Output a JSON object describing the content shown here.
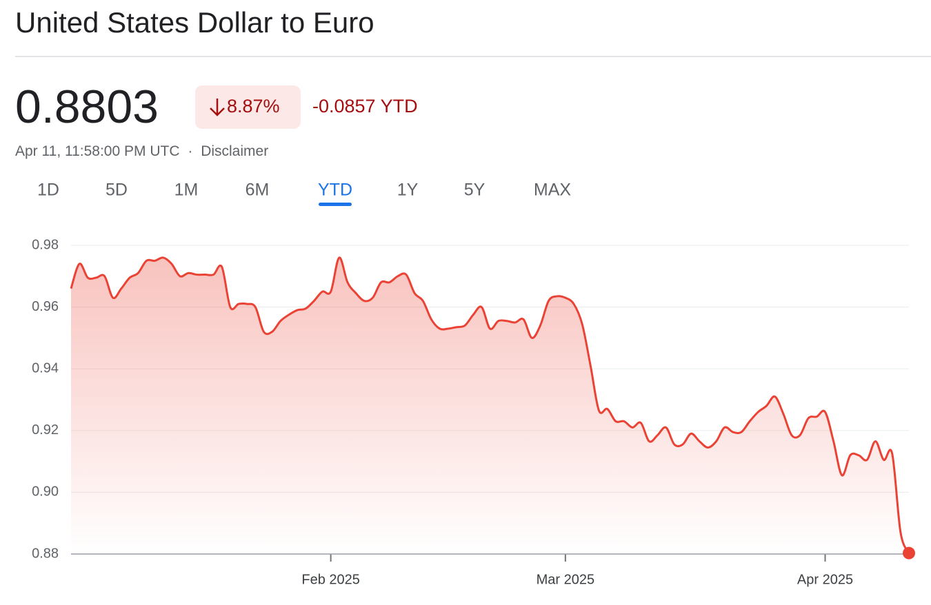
{
  "header": {
    "title": "United States Dollar to Euro",
    "price": "0.8803",
    "change_percent": "8.87%",
    "change_value": "-0.0857 YTD",
    "timestamp": "Apr 11, 11:58:00 PM UTC",
    "separator": "·",
    "disclaimer": "Disclaimer"
  },
  "tabs": {
    "items": [
      "1D",
      "5D",
      "1M",
      "6M",
      "YTD",
      "1Y",
      "5Y",
      "MAX"
    ],
    "selected": 4
  },
  "chart_data": {
    "type": "line",
    "color": "#ea4335",
    "grid": true,
    "values": [
      0.966,
      0.974,
      0.9695,
      0.9695,
      0.97,
      0.963,
      0.966,
      0.9695,
      0.971,
      0.975,
      0.975,
      0.976,
      0.974,
      0.97,
      0.971,
      0.9705,
      0.9705,
      0.9705,
      0.973,
      0.96,
      0.961,
      0.961,
      0.96,
      0.952,
      0.952,
      0.9555,
      0.9575,
      0.959,
      0.9595,
      0.962,
      0.965,
      0.965,
      0.976,
      0.968,
      0.9645,
      0.962,
      0.963,
      0.968,
      0.968,
      0.97,
      0.9705,
      0.9645,
      0.962,
      0.956,
      0.953,
      0.953,
      0.9535,
      0.954,
      0.9575,
      0.96,
      0.953,
      0.9555,
      0.9555,
      0.955,
      0.956,
      0.95,
      0.954,
      0.962,
      0.9635,
      0.963,
      0.961,
      0.9545,
      0.941,
      0.9265,
      0.927,
      0.923,
      0.923,
      0.921,
      0.9225,
      0.9165,
      0.9185,
      0.921,
      0.9155,
      0.9155,
      0.919,
      0.9165,
      0.9145,
      0.9165,
      0.921,
      0.9195,
      0.9195,
      0.923,
      0.926,
      0.928,
      0.931,
      0.9255,
      0.9185,
      0.9185,
      0.924,
      0.9245,
      0.926,
      0.9165,
      0.9055,
      0.912,
      0.912,
      0.9105,
      0.9165,
      0.9105,
      0.9125,
      0.887,
      0.8803
    ],
    "xlim": [
      0,
      100
    ],
    "xticks": [
      {
        "value": 31,
        "label": "Feb 2025"
      },
      {
        "value": 59,
        "label": "Mar 2025"
      },
      {
        "value": 90,
        "label": "Apr 2025"
      }
    ],
    "ylim": [
      0.88,
      0.98
    ],
    "yticks": [
      0.88,
      {
        "value": 0.9,
        "label": "0.90"
      },
      0.92,
      0.94,
      0.96,
      0.98
    ]
  }
}
